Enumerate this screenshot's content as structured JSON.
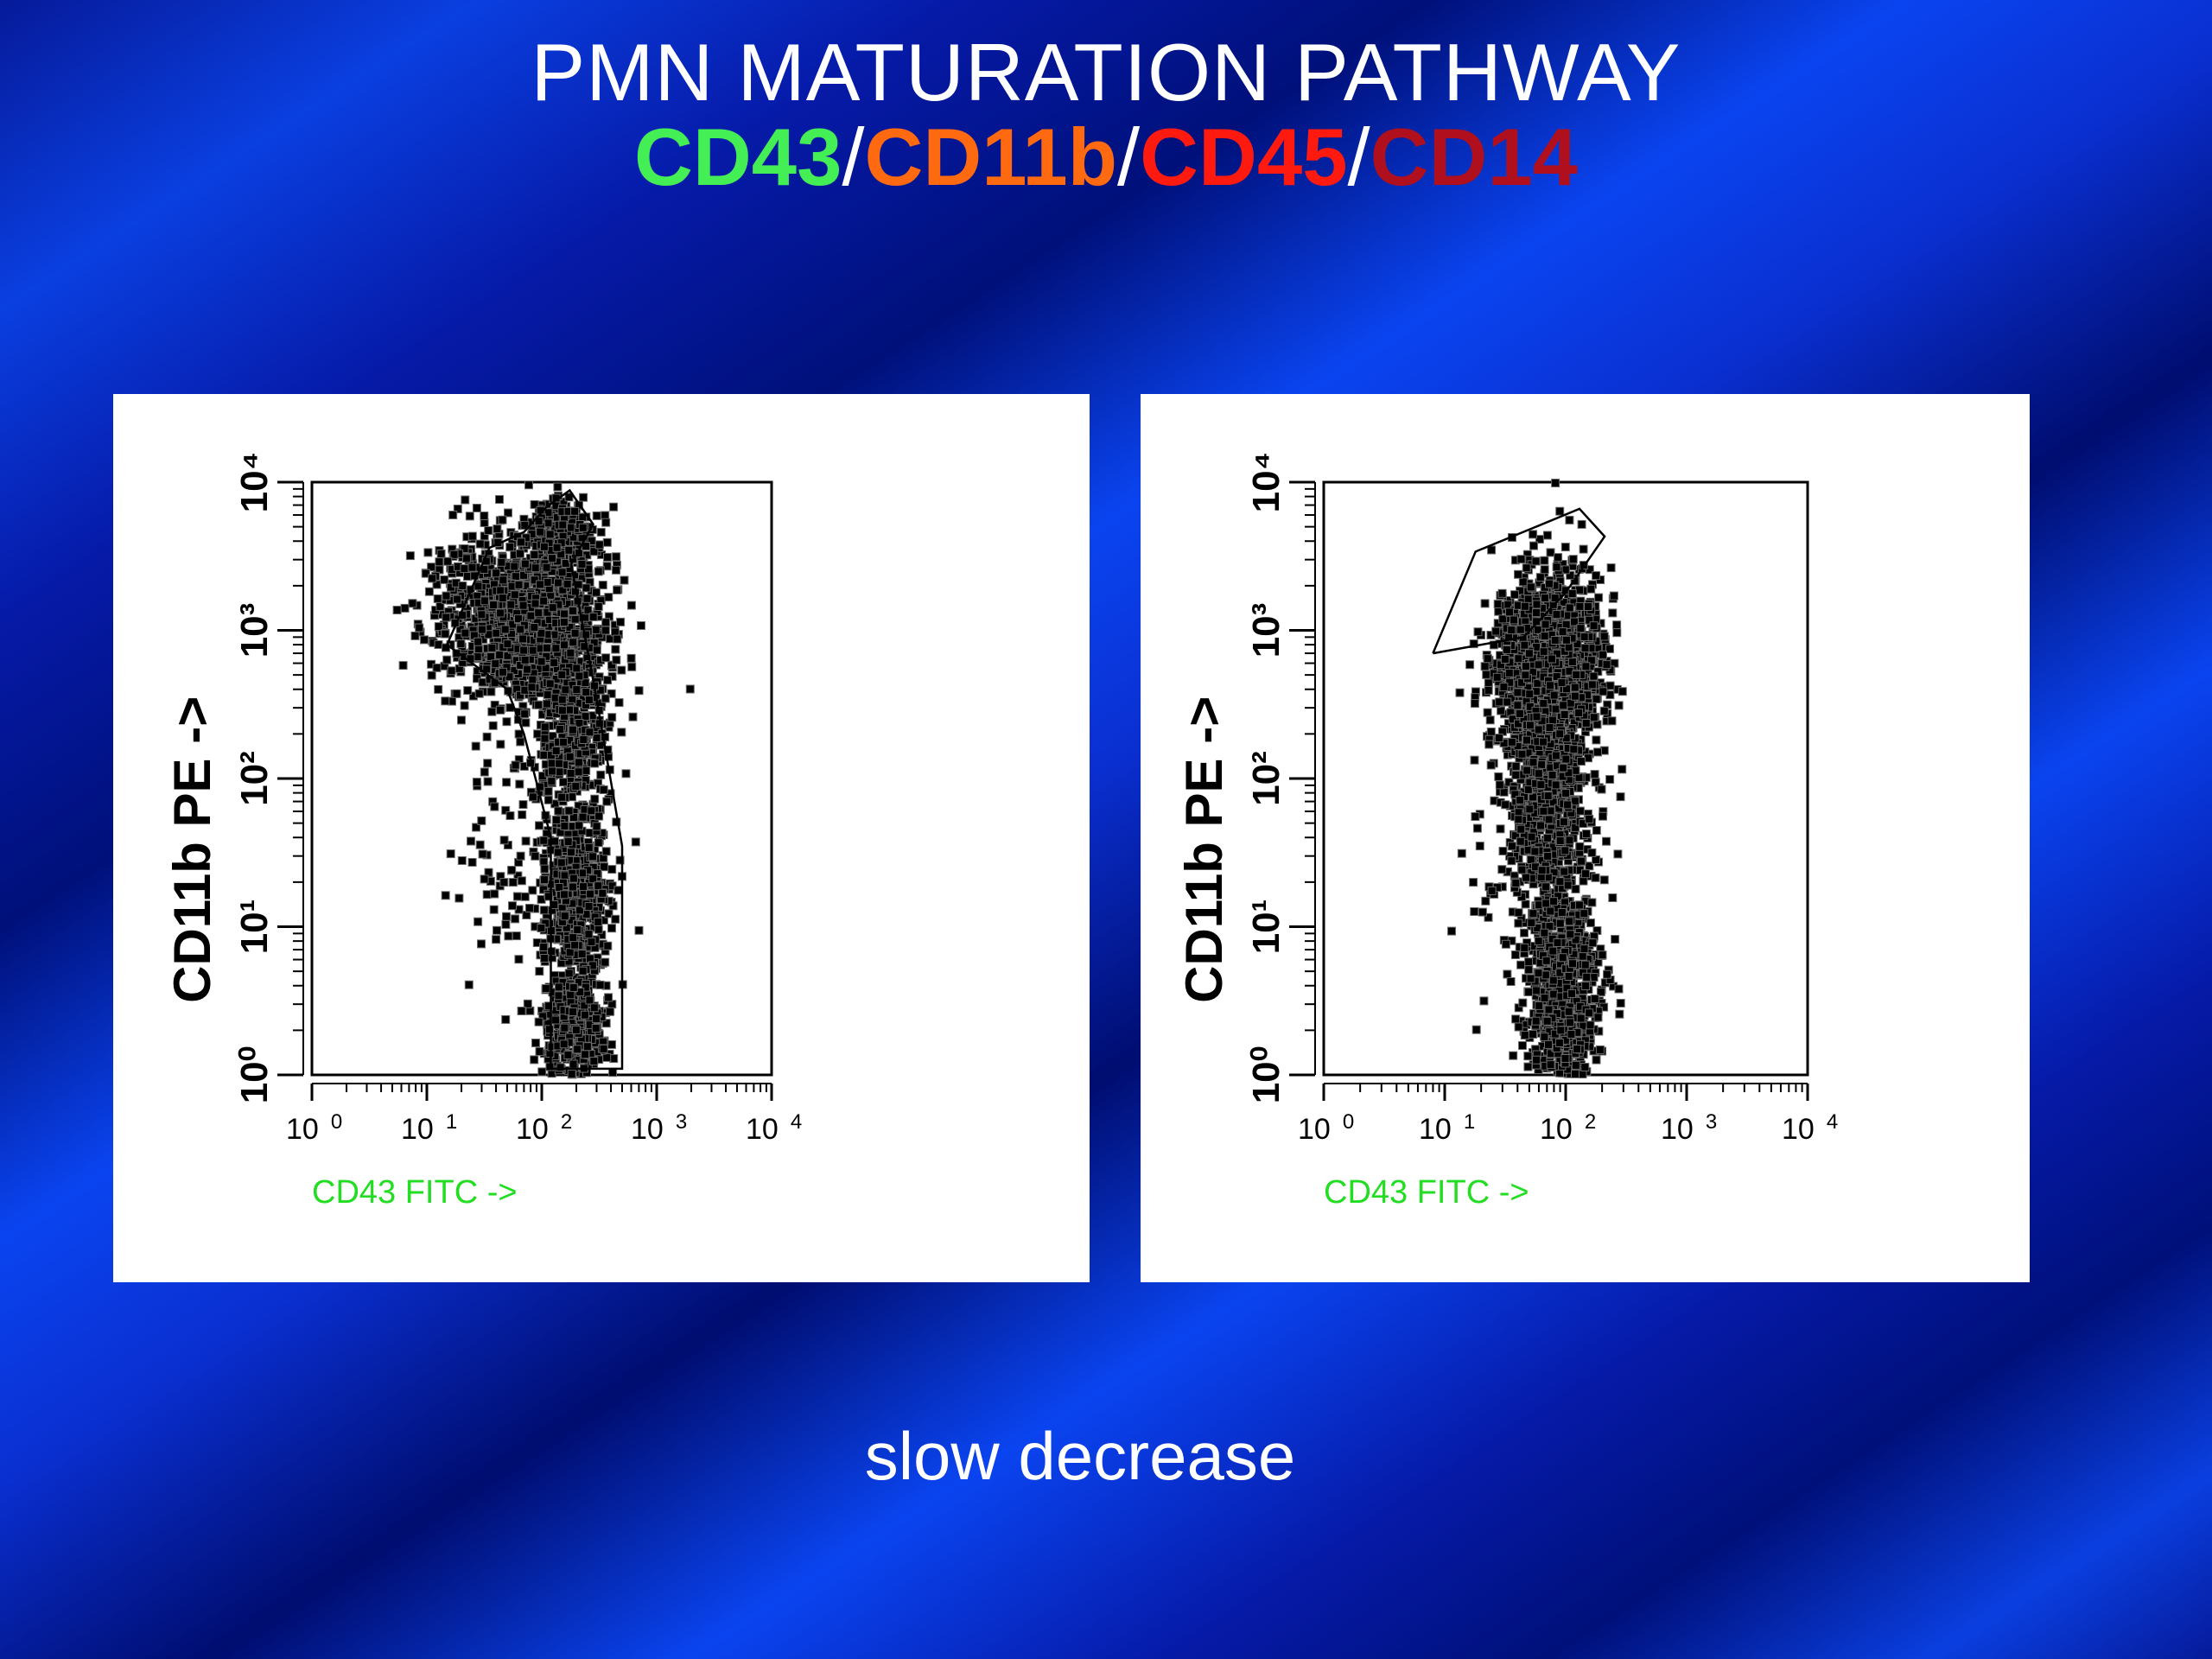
{
  "title": {
    "line1": "PMN MATURATION PATHWAY",
    "markers": [
      {
        "text": "CD43",
        "color": "#44ee55"
      },
      {
        "text": "CD11b",
        "color": "#ff6a10"
      },
      {
        "text": "CD45",
        "color": "#ff1a10"
      },
      {
        "text": "CD14",
        "color": "#b0101e"
      }
    ],
    "separator": "/"
  },
  "caption": "slow decrease",
  "colors": {
    "background": "#0a3fe0",
    "panel": "#ffffff",
    "dots": "#000000",
    "xlabel": "#22dd22"
  },
  "chart_data": [
    {
      "type": "scatter",
      "scale": "log",
      "xlabel": "CD43 FITC ->",
      "ylabel": "CD11b PE ->",
      "xlim": [
        1,
        10000
      ],
      "ylim": [
        1,
        10000
      ],
      "x_ticks": [
        {
          "base": "10",
          "exp": "0"
        },
        {
          "base": "10",
          "exp": "1"
        },
        {
          "base": "10",
          "exp": "2"
        },
        {
          "base": "10",
          "exp": "3"
        },
        {
          "base": "10",
          "exp": "4"
        }
      ],
      "y_ticks": [
        "10⁰",
        "10¹",
        "10²",
        "10³",
        "10⁴"
      ],
      "gate": [
        [
          15,
          800
        ],
        [
          35,
          3600
        ],
        [
          70,
          4600
        ],
        [
          110,
          6800
        ],
        [
          175,
          8800
        ],
        [
          280,
          5200
        ],
        [
          180,
          2800
        ],
        [
          290,
          400
        ],
        [
          500,
          35
        ],
        [
          500,
          1.1
        ],
        [
          120,
          1.1
        ],
        [
          120,
          40
        ],
        [
          70,
          200
        ],
        [
          50,
          400
        ],
        [
          15,
          800
        ]
      ],
      "clusters": [
        {
          "cx": 100,
          "cy": 1000,
          "sx": 0.28,
          "sy": 0.25,
          "n": 950
        },
        {
          "cx": 35,
          "cy": 1300,
          "sx": 0.28,
          "sy": 0.28,
          "n": 480
        },
        {
          "cx": 140,
          "cy": 4000,
          "sx": 0.18,
          "sy": 0.15,
          "n": 320
        },
        {
          "cx": 190,
          "cy": 180,
          "sx": 0.16,
          "sy": 0.28,
          "n": 380
        },
        {
          "cx": 200,
          "cy": 15,
          "sx": 0.15,
          "sy": 0.3,
          "n": 560
        },
        {
          "cx": 200,
          "cy": 2,
          "sx": 0.13,
          "sy": 0.18,
          "n": 400
        },
        {
          "cx": 45,
          "cy": 30,
          "sx": 0.25,
          "sy": 0.45,
          "n": 90
        }
      ]
    },
    {
      "type": "scatter",
      "scale": "log",
      "xlabel": "CD43 FITC ->",
      "ylabel": "CD11b PE ->",
      "xlim": [
        1,
        10000
      ],
      "ylim": [
        1,
        10000
      ],
      "x_ticks": [
        {
          "base": "10",
          "exp": "0"
        },
        {
          "base": "10",
          "exp": "1"
        },
        {
          "base": "10",
          "exp": "2"
        },
        {
          "base": "10",
          "exp": "3"
        },
        {
          "base": "10",
          "exp": "4"
        }
      ],
      "y_ticks": [
        "10⁰",
        "10¹",
        "10²",
        "10³",
        "10⁴"
      ],
      "gate": [
        [
          8,
          700
        ],
        [
          18,
          3400
        ],
        [
          130,
          6600
        ],
        [
          210,
          4300
        ],
        [
          100,
          1800
        ],
        [
          45,
          900
        ],
        [
          8,
          700
        ]
      ],
      "clusters": [
        {
          "cx": 70,
          "cy": 600,
          "sx": 0.22,
          "sy": 0.3,
          "n": 1500
        },
        {
          "cx": 70,
          "cy": 80,
          "sx": 0.18,
          "sy": 0.35,
          "n": 700
        },
        {
          "cx": 90,
          "cy": 6,
          "sx": 0.16,
          "sy": 0.3,
          "n": 650
        },
        {
          "cx": 95,
          "cy": 1.6,
          "sx": 0.13,
          "sy": 0.12,
          "n": 220
        },
        {
          "cx": 40,
          "cy": 30,
          "sx": 0.25,
          "sy": 0.4,
          "n": 60
        }
      ]
    }
  ]
}
